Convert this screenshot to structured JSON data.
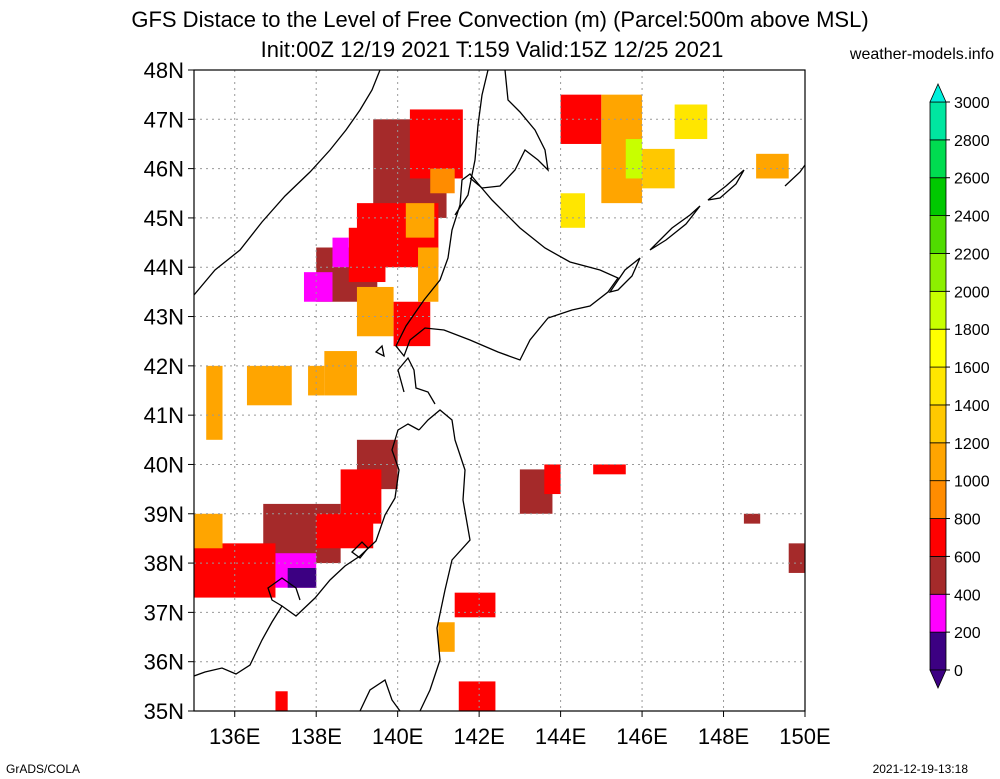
{
  "title_line1": "GFS Distace to the Level of Free Convection (m) (Parcel:500m above MSL)",
  "title_line2": "Init:00Z 12/19 2021 T:159 Valid:15Z 12/25 2021",
  "site": "weather-models.info",
  "footer_left": "GrADS/COLA",
  "footer_right": "2021-12-19-13:18",
  "map": {
    "lon_range": [
      135,
      150
    ],
    "lat_range": [
      35,
      48
    ],
    "lon_ticks": [
      {
        "value": 136,
        "label": "136E"
      },
      {
        "value": 138,
        "label": "138E"
      },
      {
        "value": 140,
        "label": "140E"
      },
      {
        "value": 142,
        "label": "142E"
      },
      {
        "value": 144,
        "label": "144E"
      },
      {
        "value": 146,
        "label": "146E"
      },
      {
        "value": 148,
        "label": "148E"
      },
      {
        "value": 150,
        "label": "150E"
      }
    ],
    "lat_ticks": [
      {
        "value": 35,
        "label": "35N"
      },
      {
        "value": 36,
        "label": "36N"
      },
      {
        "value": 37,
        "label": "37N"
      },
      {
        "value": 38,
        "label": "38N"
      },
      {
        "value": 39,
        "label": "39N"
      },
      {
        "value": 40,
        "label": "40N"
      },
      {
        "value": 41,
        "label": "41N"
      },
      {
        "value": 42,
        "label": "42N"
      },
      {
        "value": 43,
        "label": "43N"
      },
      {
        "value": 44,
        "label": "44N"
      },
      {
        "value": 45,
        "label": "45N"
      },
      {
        "value": 46,
        "label": "46N"
      },
      {
        "value": 47,
        "label": "47N"
      },
      {
        "value": 48,
        "label": "48N"
      }
    ],
    "grid": true
  },
  "colorbar": {
    "levels": [
      {
        "value": 0,
        "label": "0",
        "color": "#3c0082"
      },
      {
        "value": 200,
        "label": "200",
        "color": "#ff00ff"
      },
      {
        "value": 400,
        "label": "400",
        "color": "#a52a2a"
      },
      {
        "value": 600,
        "label": "600",
        "color": "#ff0000"
      },
      {
        "value": 800,
        "label": "800",
        "color": "#ff8c00"
      },
      {
        "value": 1000,
        "label": "1000",
        "color": "#ffa500"
      },
      {
        "value": 1200,
        "label": "1200",
        "color": "#ffc800"
      },
      {
        "value": 1400,
        "label": "1400",
        "color": "#ffe600"
      },
      {
        "value": 1600,
        "label": "1600",
        "color": "#ffff00"
      },
      {
        "value": 1800,
        "label": "1800",
        "color": "#c8ff00"
      },
      {
        "value": 2000,
        "label": "2000",
        "color": "#8cf000"
      },
      {
        "value": 2200,
        "label": "2200",
        "color": "#50dc00"
      },
      {
        "value": 2400,
        "label": "2400",
        "color": "#00c800"
      },
      {
        "value": 2600,
        "label": "2600",
        "color": "#00dc50"
      },
      {
        "value": 2800,
        "label": "2800",
        "color": "#00e6a0"
      },
      {
        "value": 3000,
        "label": "3000",
        "color": "#00f0dc"
      }
    ],
    "under_color": "#3c0082",
    "over_color": "#00f0dc"
  },
  "field_patches": [
    {
      "lon": [
        139.4,
        141.2
      ],
      "lat": [
        45.0,
        47.0
      ],
      "color": "#a52a2a"
    },
    {
      "lon": [
        139.0,
        141.0
      ],
      "lat": [
        44.0,
        45.3
      ],
      "color": "#ff0000"
    },
    {
      "lon": [
        140.3,
        141.6
      ],
      "lat": [
        45.8,
        47.2
      ],
      "color": "#ff0000"
    },
    {
      "lon": [
        140.2,
        140.9
      ],
      "lat": [
        44.6,
        45.3
      ],
      "color": "#ffa500"
    },
    {
      "lon": [
        140.8,
        141.4
      ],
      "lat": [
        45.5,
        46.0
      ],
      "color": "#ff8c00"
    },
    {
      "lon": [
        138.0,
        139.5
      ],
      "lat": [
        43.3,
        44.4
      ],
      "color": "#a52a2a"
    },
    {
      "lon": [
        138.8,
        139.7
      ],
      "lat": [
        43.7,
        44.8
      ],
      "color": "#ff0000"
    },
    {
      "lon": [
        139.0,
        139.9
      ],
      "lat": [
        42.6,
        43.6
      ],
      "color": "#ffa500"
    },
    {
      "lon": [
        137.7,
        138.4
      ],
      "lat": [
        43.3,
        43.9
      ],
      "color": "#ff00ff"
    },
    {
      "lon": [
        138.4,
        138.8
      ],
      "lat": [
        44.0,
        44.6
      ],
      "color": "#ff00ff"
    },
    {
      "lon": [
        139.9,
        140.8
      ],
      "lat": [
        42.4,
        43.3
      ],
      "color": "#ff0000"
    },
    {
      "lon": [
        140.5,
        141.0
      ],
      "lat": [
        43.3,
        44.4
      ],
      "color": "#ffa500"
    },
    {
      "lon": [
        135.3,
        135.7
      ],
      "lat": [
        40.5,
        42.0
      ],
      "color": "#ffa500"
    },
    {
      "lon": [
        136.3,
        137.4
      ],
      "lat": [
        41.2,
        42.0
      ],
      "color": "#ffa500"
    },
    {
      "lon": [
        137.8,
        138.2
      ],
      "lat": [
        41.4,
        42.0
      ],
      "color": "#ffa500"
    },
    {
      "lon": [
        138.2,
        139.0
      ],
      "lat": [
        41.4,
        42.3
      ],
      "color": "#ffa500"
    },
    {
      "lon": [
        139.0,
        140.0
      ],
      "lat": [
        39.5,
        40.5
      ],
      "color": "#a52a2a"
    },
    {
      "lon": [
        138.6,
        139.6
      ],
      "lat": [
        38.8,
        39.9
      ],
      "color": "#ff0000"
    },
    {
      "lon": [
        136.7,
        138.6
      ],
      "lat": [
        38.0,
        39.2
      ],
      "color": "#a52a2a"
    },
    {
      "lon": [
        135.0,
        137.0
      ],
      "lat": [
        37.3,
        38.4
      ],
      "color": "#ff0000"
    },
    {
      "lon": [
        135.0,
        135.7
      ],
      "lat": [
        38.3,
        39.0
      ],
      "color": "#ffa500"
    },
    {
      "lon": [
        137.0,
        138.0
      ],
      "lat": [
        37.5,
        38.2
      ],
      "color": "#ff00ff"
    },
    {
      "lon": [
        137.3,
        138.0
      ],
      "lat": [
        37.5,
        37.9
      ],
      "color": "#3c0082"
    },
    {
      "lon": [
        138.0,
        139.4
      ],
      "lat": [
        38.3,
        39.0
      ],
      "color": "#ff0000"
    },
    {
      "lon": [
        143.0,
        143.8
      ],
      "lat": [
        39.0,
        39.9
      ],
      "color": "#a52a2a"
    },
    {
      "lon": [
        143.6,
        144.0
      ],
      "lat": [
        39.4,
        40.0
      ],
      "color": "#ff0000"
    },
    {
      "lon": [
        144.8,
        145.6
      ],
      "lat": [
        39.8,
        40.0
      ],
      "color": "#ff0000"
    },
    {
      "lon": [
        144.0,
        145.0
      ],
      "lat": [
        46.5,
        47.5
      ],
      "color": "#ff0000"
    },
    {
      "lon": [
        145.0,
        146.0
      ],
      "lat": [
        45.3,
        47.5
      ],
      "color": "#ffa500"
    },
    {
      "lon": [
        145.6,
        146.0
      ],
      "lat": [
        45.8,
        46.6
      ],
      "color": "#c8ff00"
    },
    {
      "lon": [
        146.0,
        146.8
      ],
      "lat": [
        45.6,
        46.4
      ],
      "color": "#ffc800"
    },
    {
      "lon": [
        146.8,
        147.6
      ],
      "lat": [
        46.6,
        47.3
      ],
      "color": "#ffe600"
    },
    {
      "lon": [
        144.0,
        144.6
      ],
      "lat": [
        44.8,
        45.5
      ],
      "color": "#ffe600"
    },
    {
      "lon": [
        141.5,
        142.4
      ],
      "lat": [
        34.9,
        35.6
      ],
      "color": "#ff0000"
    },
    {
      "lon": [
        141.0,
        141.4
      ],
      "lat": [
        36.2,
        36.8
      ],
      "color": "#ffa500"
    },
    {
      "lon": [
        141.4,
        142.4
      ],
      "lat": [
        36.9,
        37.4
      ],
      "color": "#ff0000"
    },
    {
      "lon": [
        148.8,
        149.6
      ],
      "lat": [
        45.8,
        46.3
      ],
      "color": "#ffa500"
    },
    {
      "lon": [
        149.6,
        150.0
      ],
      "lat": [
        37.8,
        38.4
      ],
      "color": "#a52a2a"
    },
    {
      "lon": [
        148.5,
        148.9
      ],
      "lat": [
        38.8,
        39.0
      ],
      "color": "#a52a2a"
    },
    {
      "lon": [
        137.0,
        137.3
      ],
      "lat": [
        34.9,
        35.4
      ],
      "color": "#ff0000"
    }
  ]
}
